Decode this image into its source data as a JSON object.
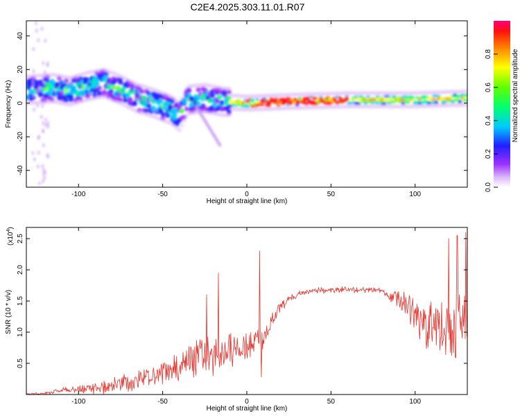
{
  "title": "C2E4.2025.303.11.01.R07",
  "chart_data": [
    {
      "type": "heatmap",
      "name": "spectrogram",
      "xlabel": "Height of straight line (km)",
      "ylabel": "Frequency (Hz)",
      "xlim": [
        -131,
        131
      ],
      "ylim": [
        -50,
        49
      ],
      "xticks": [
        "-100",
        "-50",
        "0",
        "50",
        "100"
      ],
      "yticks": [
        "-40",
        "-20",
        "0",
        "20",
        "40"
      ],
      "colorbar": {
        "label": "Normalized spectral amplitude",
        "range": [
          0,
          1
        ],
        "ticks": [
          "0.0",
          "0.2",
          "0.4",
          "0.6",
          "0.8"
        ]
      },
      "ridge": [
        {
          "x": -128,
          "y": 8
        },
        {
          "x": -115,
          "y": 9
        },
        {
          "x": -105,
          "y": 7
        },
        {
          "x": -95,
          "y": 10
        },
        {
          "x": -85,
          "y": 12
        },
        {
          "x": -75,
          "y": 8
        },
        {
          "x": -65,
          "y": 3
        },
        {
          "x": -55,
          "y": 0
        },
        {
          "x": -45,
          "y": -4
        },
        {
          "x": -40,
          "y": -8
        },
        {
          "x": -35,
          "y": 2
        },
        {
          "x": -25,
          "y": 3
        },
        {
          "x": -15,
          "y": 1
        },
        {
          "x": 0,
          "y": 0
        },
        {
          "x": 25,
          "y": 1
        },
        {
          "x": 60,
          "y": 2
        },
        {
          "x": 100,
          "y": 2
        },
        {
          "x": 130,
          "y": 3
        }
      ],
      "tail": [
        {
          "x": -30,
          "y": -2
        },
        {
          "x": -16,
          "y": -25
        }
      ]
    },
    {
      "type": "line",
      "name": "snr",
      "xlabel": "Height of straight line (km)",
      "ylabel": "SNR (10 * v/v)",
      "multiplier": "(x10",
      "multiplier_exp": "4",
      "xlim": [
        -131,
        131
      ],
      "ylim": [
        0,
        2.68
      ],
      "xticks": [
        "-100",
        "-50",
        "0",
        "50",
        "100"
      ],
      "yticks": [
        "0.5",
        "1.0",
        "1.5",
        "2.0",
        "2.5"
      ],
      "color": "#e8302a",
      "envelope": [
        {
          "x": -131,
          "y": 0.02
        },
        {
          "x": -120,
          "y": 0.03
        },
        {
          "x": -110,
          "y": 0.1
        },
        {
          "x": -100,
          "y": 0.12
        },
        {
          "x": -90,
          "y": 0.15
        },
        {
          "x": -80,
          "y": 0.22
        },
        {
          "x": -70,
          "y": 0.3
        },
        {
          "x": -60,
          "y": 0.4
        },
        {
          "x": -50,
          "y": 0.48
        },
        {
          "x": -40,
          "y": 0.6
        },
        {
          "x": -30,
          "y": 0.8
        },
        {
          "x": -20,
          "y": 0.9
        },
        {
          "x": -10,
          "y": 0.95
        },
        {
          "x": 0,
          "y": 0.97
        },
        {
          "x": 10,
          "y": 1.05
        },
        {
          "x": 15,
          "y": 1.3
        },
        {
          "x": 20,
          "y": 1.5
        },
        {
          "x": 30,
          "y": 1.65
        },
        {
          "x": 40,
          "y": 1.7
        },
        {
          "x": 60,
          "y": 1.72
        },
        {
          "x": 80,
          "y": 1.7
        },
        {
          "x": 90,
          "y": 1.65
        },
        {
          "x": 100,
          "y": 1.5
        },
        {
          "x": 110,
          "y": 1.4
        },
        {
          "x": 120,
          "y": 1.45
        },
        {
          "x": 131,
          "y": 1.6
        }
      ],
      "noise": [
        {
          "x": -131,
          "y": 0.02
        },
        {
          "x": -110,
          "y": 0.06
        },
        {
          "x": -90,
          "y": 0.15
        },
        {
          "x": -70,
          "y": 0.25
        },
        {
          "x": -50,
          "y": 0.3
        },
        {
          "x": -30,
          "y": 0.5
        },
        {
          "x": -15,
          "y": 0.6
        },
        {
          "x": 0,
          "y": 0.4
        },
        {
          "x": 15,
          "y": 0.25
        },
        {
          "x": 30,
          "y": 0.08
        },
        {
          "x": 80,
          "y": 0.08
        },
        {
          "x": 95,
          "y": 0.4
        },
        {
          "x": 110,
          "y": 0.8
        },
        {
          "x": 131,
          "y": 0.9
        }
      ],
      "spikes": [
        {
          "x": 7.5,
          "y": 2.3
        },
        {
          "x": 8.5,
          "y": 0.28
        },
        {
          "x": 120,
          "y": 2.5
        },
        {
          "x": 125,
          "y": 2.55
        },
        {
          "x": 130,
          "y": 2.6
        },
        {
          "x": -17,
          "y": 1.95
        },
        {
          "x": -24,
          "y": 1.6
        },
        {
          "x": 110,
          "y": 0.85
        },
        {
          "x": 116,
          "y": 0.78
        }
      ]
    }
  ]
}
